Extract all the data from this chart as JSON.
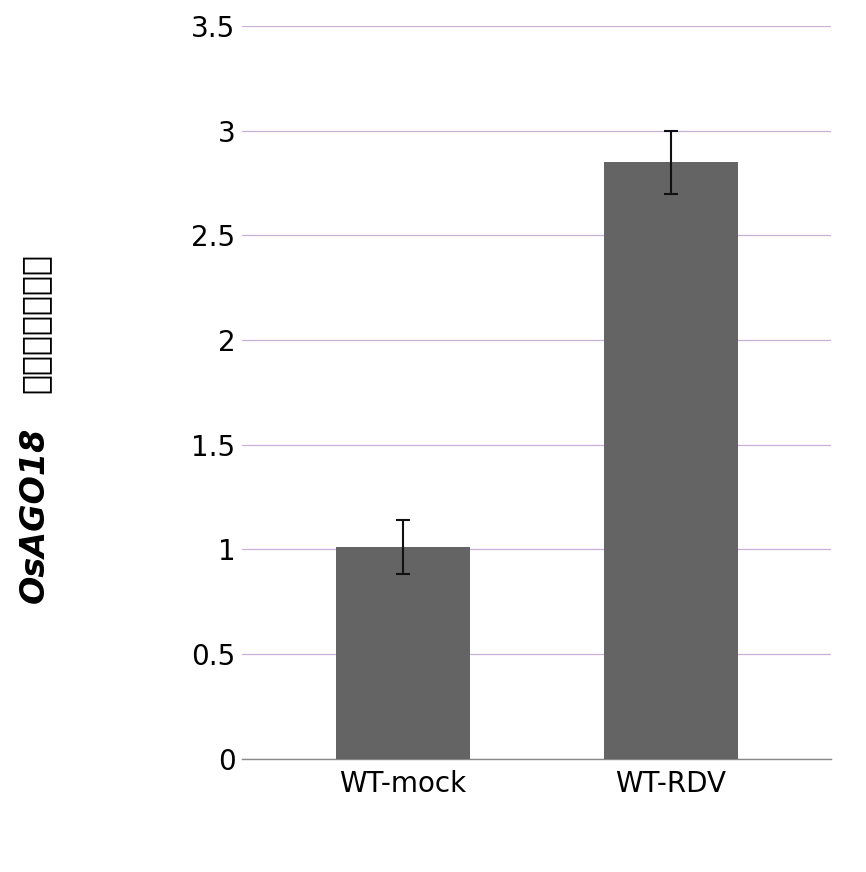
{
  "categories": [
    "WT-mock",
    "WT-RDV"
  ],
  "values": [
    1.01,
    2.85
  ],
  "errors": [
    0.13,
    0.15
  ],
  "bar_color": "#646464",
  "bar_width": 0.5,
  "ylim": [
    0,
    3.5
  ],
  "yticks": [
    0,
    0.5,
    1.0,
    1.5,
    2.0,
    2.5,
    3.0,
    3.5
  ],
  "ytick_labels": [
    "0",
    "0.5",
    "1",
    "1.5",
    "2",
    "2.5",
    "3",
    "3.5"
  ],
  "ylabel_chinese": "基因相对表达量",
  "ylabel_italic": "OsAGO18",
  "grid_color": "#c8b0d8",
  "grid_linewidth": 0.9,
  "tick_fontsize": 20,
  "xlabel_fontsize": 20,
  "ylabel_fontsize": 24,
  "figure_bg": "#ffffff",
  "axes_bg": "#ffffff",
  "error_capsize": 5,
  "error_linewidth": 1.5,
  "error_color": "#111111",
  "spine_color": "#888888"
}
